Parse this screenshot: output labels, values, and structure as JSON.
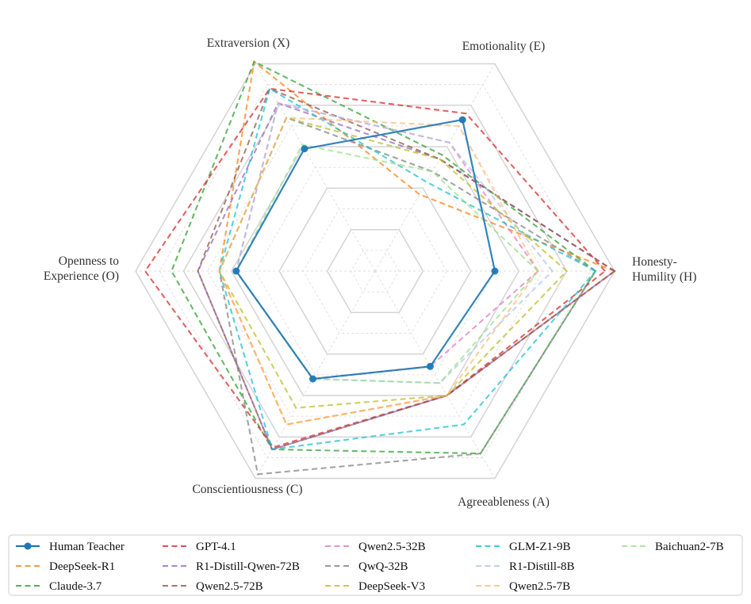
{
  "chart_data": {
    "type": "radar",
    "title": "",
    "axes": [
      "Honesty-Humility (H)",
      "Emotionality (E)",
      "Extraversion (X)",
      "Openness to Experience (O)",
      "Conscientiousness (C)",
      "Agreeableness (A)"
    ],
    "axis_label_lines": [
      [
        "Honesty-",
        "Humility (H)"
      ],
      [
        "Emotionality (E)"
      ],
      [
        "Extraversion (X)"
      ],
      [
        "Openness to",
        "Experience (O)"
      ],
      [
        "Conscientiousness (C)"
      ],
      [
        "Agreeableness (A)"
      ]
    ],
    "rmax": 1.0,
    "grid_levels": [
      0.1,
      0.2,
      0.3,
      0.4,
      0.5,
      0.6,
      0.7,
      0.8,
      0.9,
      1.0
    ],
    "grid": true,
    "legend_position": "bottom",
    "series": [
      {
        "name": "Human Teacher",
        "color": "#1f77b4",
        "style": "solid-marker",
        "values": [
          0.5,
          0.73,
          0.59,
          0.58,
          0.52,
          0.46
        ]
      },
      {
        "name": "DeepSeek-R1",
        "color": "#ff7f0e",
        "style": "dashed",
        "values": [
          1.0,
          0.37,
          1.01,
          0.65,
          0.74,
          0.6
        ]
      },
      {
        "name": "Claude-3.7",
        "color": "#2ca02c",
        "style": "dashed",
        "values": [
          0.92,
          0.56,
          1.01,
          0.85,
          0.86,
          0.88
        ]
      },
      {
        "name": "GPT-4.1",
        "color": "#d62728",
        "style": "dashed",
        "values": [
          0.96,
          0.76,
          0.88,
          0.96,
          0.85,
          0.6
        ]
      },
      {
        "name": "R1-Distill-Qwen-72B",
        "color": "#9467bd",
        "style": "dashed",
        "values": [
          1.0,
          0.54,
          0.81,
          0.74,
          0.86,
          0.6
        ]
      },
      {
        "name": "Qwen2.5-72B",
        "color": "#8c564b",
        "style": "dashed",
        "values": [
          1.0,
          0.54,
          0.88,
          0.74,
          0.86,
          0.6
        ]
      },
      {
        "name": "Qwen2.5-32B",
        "color": "#e377c2",
        "style": "dashed",
        "values": [
          0.68,
          0.62,
          0.81,
          0.58,
          0.52,
          0.46
        ]
      },
      {
        "name": "QwQ-32B",
        "color": "#7f7f7f",
        "style": "dashed",
        "values": [
          0.92,
          0.48,
          0.74,
          0.65,
          0.98,
          0.88
        ]
      },
      {
        "name": "DeepSeek-V3",
        "color": "#bcbd22",
        "style": "dashed",
        "values": [
          0.8,
          0.54,
          0.74,
          0.65,
          0.66,
          0.6
        ]
      },
      {
        "name": "GLM-Z1-9B",
        "color": "#17becf",
        "style": "dashed",
        "values": [
          0.92,
          0.43,
          0.88,
          0.65,
          0.86,
          0.74
        ]
      },
      {
        "name": "R1-Distill-8B",
        "color": "#aec7e8",
        "style": "dashed",
        "values": [
          0.74,
          0.62,
          0.81,
          0.58,
          0.52,
          0.54
        ]
      },
      {
        "name": "Qwen2.5-7B",
        "color": "#ffbb78",
        "style": "dashed",
        "values": [
          0.68,
          0.7,
          0.74,
          0.65,
          0.74,
          0.6
        ]
      },
      {
        "name": "Baichuan2-7B",
        "color": "#98df8a",
        "style": "dashed",
        "values": [
          0.68,
          0.48,
          0.61,
          0.58,
          0.52,
          0.54
        ]
      }
    ]
  }
}
